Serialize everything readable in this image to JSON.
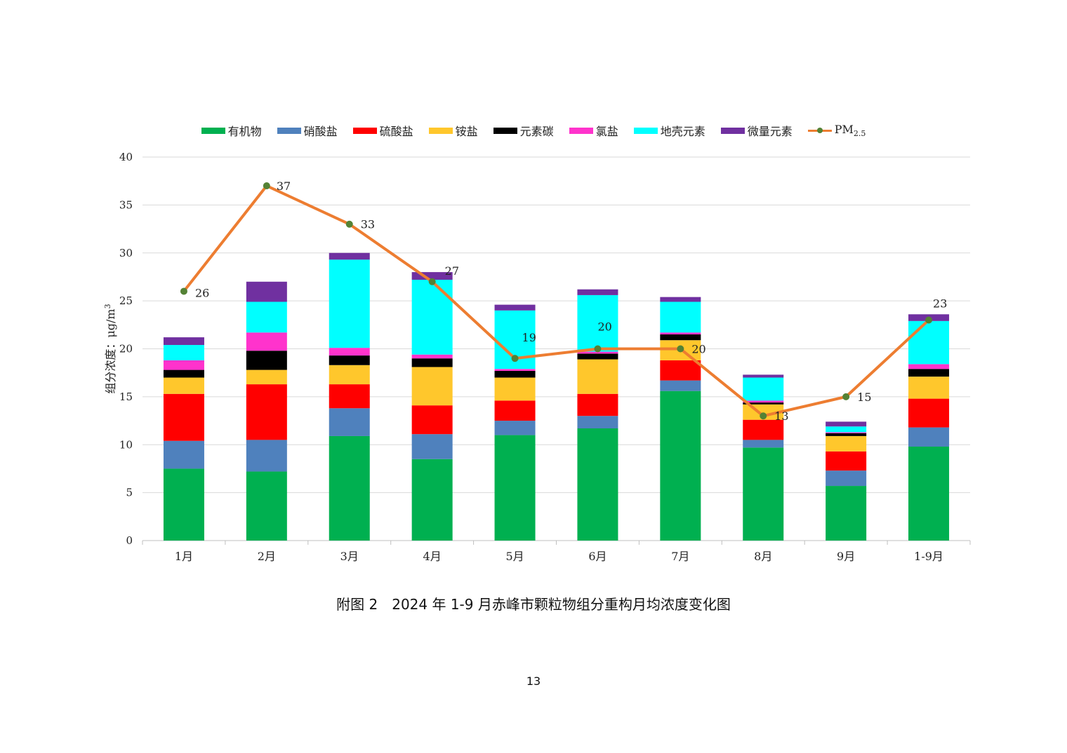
{
  "chart_data": {
    "type": "bar",
    "stacked": true,
    "categories": [
      "1月",
      "2月",
      "3月",
      "4月",
      "5月",
      "6月",
      "7月",
      "8月",
      "9月",
      "1-9月"
    ],
    "ylabel_parts": [
      "组分浓度：",
      "μg/m",
      "3"
    ],
    "ylim": [
      0,
      40
    ],
    "yticks": [
      0,
      5,
      10,
      15,
      20,
      25,
      30,
      35,
      40
    ],
    "grid": true,
    "legend_position": "top",
    "series": [
      {
        "name": "有机物",
        "color": "#00B050",
        "values": [
          7.5,
          7.2,
          10.9,
          8.5,
          11.0,
          11.7,
          15.6,
          9.7,
          5.7,
          9.8
        ]
      },
      {
        "name": "硝酸盐",
        "color": "#4F81BD",
        "values": [
          2.9,
          3.3,
          2.9,
          2.6,
          1.5,
          1.3,
          1.1,
          0.8,
          1.6,
          2.0
        ]
      },
      {
        "name": "硫酸盐",
        "color": "#FF0000",
        "values": [
          4.9,
          5.8,
          2.5,
          3.0,
          2.1,
          2.3,
          2.1,
          2.1,
          2.0,
          3.0
        ]
      },
      {
        "name": "铵盐",
        "color": "#FFC72C",
        "values": [
          1.7,
          1.5,
          2.0,
          4.0,
          2.4,
          3.6,
          2.1,
          1.6,
          1.6,
          2.3
        ]
      },
      {
        "name": "元素碳",
        "color": "#000000",
        "values": [
          0.8,
          2.0,
          1.0,
          0.9,
          0.7,
          0.6,
          0.6,
          0.2,
          0.3,
          0.8
        ]
      },
      {
        "name": "氯盐",
        "color": "#FF33CC",
        "values": [
          1.0,
          1.9,
          0.8,
          0.4,
          0.2,
          0.2,
          0.2,
          0.2,
          0.1,
          0.5
        ]
      },
      {
        "name": "地壳元素",
        "color": "#00FFFF",
        "values": [
          1.6,
          3.2,
          9.2,
          7.8,
          6.1,
          5.9,
          3.2,
          2.4,
          0.6,
          4.5
        ]
      },
      {
        "name": "微量元素",
        "color": "#7030A0",
        "values": [
          0.8,
          2.1,
          0.7,
          0.8,
          0.6,
          0.6,
          0.5,
          0.3,
          0.5,
          0.7
        ]
      }
    ],
    "line_series": {
      "name_main": "PM",
      "name_sub": "2.5",
      "color": "#ED7D31",
      "marker_color": "#548235",
      "points": [
        {
          "category": "1月",
          "value": 26
        },
        {
          "category": "2月",
          "value": 37
        },
        {
          "category": "3月",
          "value": 33
        },
        {
          "category": "4月",
          "value": 27
        },
        {
          "category": "5月",
          "value": 19
        },
        {
          "category": "6月",
          "value": 20
        },
        {
          "category": "7月",
          "value": 20
        },
        {
          "category": "8月",
          "value": 13
        },
        {
          "category": "9月",
          "value": 15
        },
        {
          "category": "1-9月",
          "value": 23
        }
      ],
      "labels": [
        "26",
        "37",
        "33",
        "27",
        "19",
        "20",
        "20",
        "13",
        "15",
        "23"
      ]
    }
  },
  "caption": "附图 2　2024 年 1-9 月赤峰市颗粒物组分重构月均浓度变化图",
  "page_number": "13"
}
